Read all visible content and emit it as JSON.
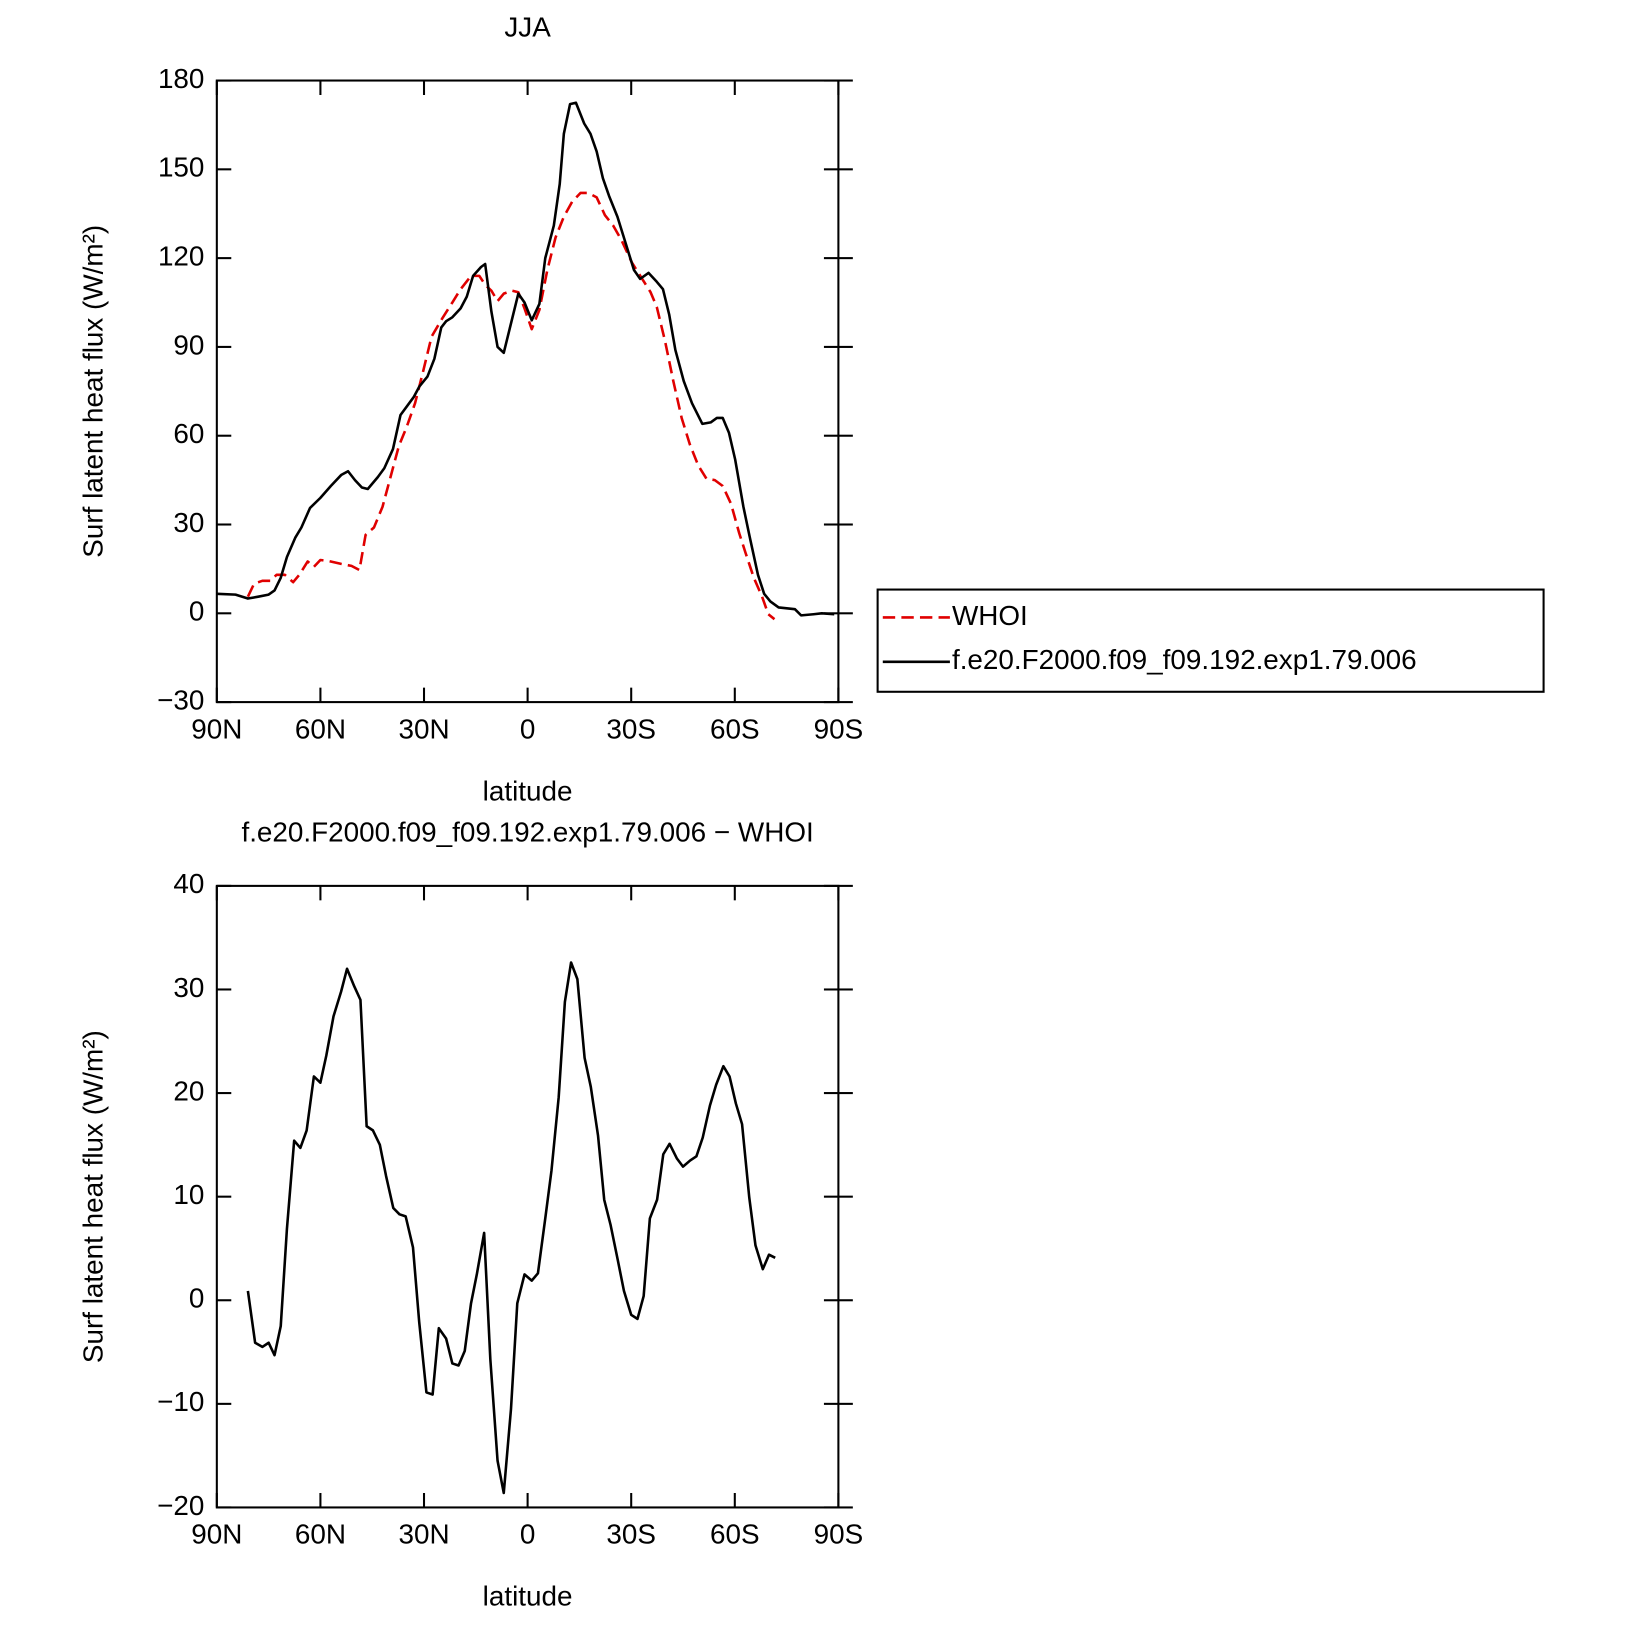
{
  "chart_data": [
    {
      "type": "line",
      "title": "JJA",
      "xlabel": "latitude",
      "ylabel": "Surf latent heat flux (W/m²)",
      "xlim": [
        90,
        -90
      ],
      "xticks": [
        {
          "value": 90,
          "label": "90N"
        },
        {
          "value": 60,
          "label": "60N"
        },
        {
          "value": 30,
          "label": "30N"
        },
        0,
        {
          "value": -30,
          "label": "30S"
        },
        {
          "value": -60,
          "label": "60S"
        },
        {
          "value": -90,
          "label": "90S"
        }
      ],
      "ylim": [
        -30,
        180
      ],
      "yticks": [
        {
          "value": -30,
          "label": "−30"
        },
        0,
        30,
        60,
        90,
        120,
        150,
        180
      ],
      "legend": "outside right",
      "series": [
        {
          "name": "WHOI",
          "color": "#e00000",
          "style": "dashed",
          "x": [
            81,
            79.2,
            76.8,
            74.5,
            72.7,
            70.3,
            67.9,
            66.1,
            63.7,
            61.9,
            60,
            57.7,
            54,
            51,
            48.7,
            46.9,
            44.5,
            42,
            39.7,
            37.3,
            35,
            32.6,
            30.2,
            27.8,
            24.8,
            21.8,
            19.4,
            16.4,
            14,
            12.3,
            10.5,
            8.7,
            6.9,
            4.5,
            2.7,
            0.9,
            -1.2,
            -3.4,
            -5.7,
            -8.1,
            -10.5,
            -12.9,
            -15.3,
            -17.6,
            -20,
            -22.4,
            -24.8,
            -27.2,
            -30.2,
            -33.2,
            -35.6,
            -37.4,
            -39.8,
            -42.2,
            -44.6,
            -47,
            -49.4,
            -51.8,
            -54.2,
            -56.5,
            -58.9,
            -61.3,
            -63.1,
            -65.5,
            -67.9,
            -69.7,
            -71.5
          ],
          "values": [
            5.6,
            10,
            11,
            11,
            13,
            13,
            10.5,
            13,
            17.5,
            15.7,
            18,
            17.7,
            16.7,
            16,
            14.6,
            26.5,
            29,
            36,
            46,
            56.5,
            63,
            71,
            82,
            93.5,
            99.5,
            105,
            109.5,
            114,
            114,
            111,
            109,
            105.5,
            108,
            109,
            108.5,
            103,
            96,
            102.5,
            116,
            127,
            134,
            139,
            142,
            142,
            140.5,
            134.5,
            131,
            126,
            118.5,
            113,
            108.5,
            103.5,
            92,
            78.5,
            66,
            57,
            50,
            45.5,
            45,
            43,
            37,
            27,
            20.5,
            12,
            5.6,
            -0.3,
            -2
          ]
        },
        {
          "name": "f.e20.F2000.f09_f09.192.exp1.79.006",
          "color": "#000000",
          "style": "solid",
          "x": [
            90,
            84.6,
            81,
            78,
            75,
            73.3,
            71.5,
            69.7,
            67.3,
            65.5,
            63,
            60,
            57,
            54,
            52,
            50,
            48,
            46.3,
            43.4,
            41.5,
            39,
            36.8,
            33,
            31.3,
            29,
            27,
            25,
            23.6,
            21.8,
            19.4,
            17.6,
            15.8,
            13.5,
            12.3,
            10.5,
            8.7,
            6.9,
            2.7,
            0.9,
            -1.2,
            -3.4,
            -5.1,
            -7.6,
            -9.3,
            -10.5,
            -12.3,
            -14,
            -16.4,
            -18.2,
            -20,
            -21.8,
            -23.6,
            -26,
            -28.4,
            -30.8,
            -32.6,
            -35,
            -37.4,
            -39.2,
            -41,
            -42.8,
            -45.2,
            -47.6,
            -50.6,
            -53,
            -54.8,
            -56.5,
            -58.3,
            -60.1,
            -62.5,
            -64.3,
            -66.7,
            -68.5,
            -70.3,
            -72.7,
            -77.4,
            -79.2,
            -82.8,
            -85.2,
            -88.8
          ],
          "values": [
            6.6,
            6.3,
            5,
            5.6,
            6.3,
            7.7,
            12,
            19,
            25.5,
            29,
            35.6,
            39,
            43,
            46.7,
            48,
            45,
            42.5,
            42,
            46,
            49,
            55.5,
            67,
            73,
            76.7,
            80,
            86,
            96.6,
            98.7,
            100,
            103,
            107,
            114,
            117,
            118,
            102,
            90,
            88,
            108,
            105,
            99,
            104.5,
            120,
            131,
            145,
            162,
            172,
            172.5,
            165.5,
            162,
            156,
            147,
            141,
            134,
            125,
            116,
            113,
            115,
            112,
            109.5,
            101,
            89,
            78.5,
            71,
            64,
            64.5,
            66,
            66,
            61,
            52,
            36,
            26,
            13,
            6.6,
            4,
            2,
            1.4,
            -0.7,
            -0.3,
            0,
            -0.3
          ]
        }
      ]
    },
    {
      "type": "line",
      "title": "f.e20.F2000.f09_f09.192.exp1.79.006 − WHOI",
      "xlabel": "latitude",
      "ylabel": "Surf latent heat flux (W/m²)",
      "xlim": [
        90,
        -90
      ],
      "xticks": [
        {
          "value": 90,
          "label": "90N"
        },
        {
          "value": 60,
          "label": "60N"
        },
        {
          "value": 30,
          "label": "30N"
        },
        0,
        {
          "value": -30,
          "label": "30S"
        },
        {
          "value": -60,
          "label": "60S"
        },
        {
          "value": -90,
          "label": "90S"
        }
      ],
      "ylim": [
        -20,
        40
      ],
      "yticks": [
        {
          "value": -20,
          "label": "−20"
        },
        {
          "value": -10,
          "label": "−10"
        },
        0,
        10,
        20,
        30,
        40
      ],
      "series": [
        {
          "color": "#000000",
          "style": "solid",
          "x": [
            81,
            78.9,
            76.8,
            75,
            73.3,
            71.5,
            69.7,
            67.6,
            65.8,
            64,
            61.9,
            60,
            58.3,
            56.2,
            54,
            52.3,
            50.2,
            48.4,
            46.6,
            44.8,
            42.8,
            41,
            38.9,
            37.1,
            35.3,
            33.2,
            31.4,
            29.3,
            27.5,
            25.7,
            23.6,
            21.8,
            20,
            18.2,
            16.4,
            14.7,
            12.6,
            10.8,
            8.7,
            6.9,
            4.8,
            3,
            0.9,
            -1.2,
            -3,
            -5.1,
            -6.9,
            -9,
            -10.8,
            -12.6,
            -14.4,
            -16.5,
            -18.3,
            -20.4,
            -22.2,
            -24,
            -26.1,
            -27.9,
            -30,
            -31.8,
            -33.6,
            -35.4,
            -37.5,
            -39.3,
            -41.1,
            -43.2,
            -45,
            -47.1,
            -48.9,
            -50.7,
            -52.8,
            -54.6,
            -56.7,
            -58.5,
            -60.3,
            -62.1,
            -64.2,
            -66,
            -68.1,
            -69.9,
            -71.7
          ],
          "values": [
            0.9,
            -4.1,
            -4.5,
            -4.1,
            -5.3,
            -2.5,
            6.9,
            15.4,
            14.7,
            16.4,
            21.6,
            21,
            23.6,
            27.4,
            29.8,
            32,
            30.3,
            29,
            16.8,
            16.4,
            15,
            12,
            8.9,
            8.3,
            8.1,
            5.1,
            -2.1,
            -8.9,
            -9.1,
            -2.7,
            -3.7,
            -6.1,
            -6.3,
            -4.9,
            -0.3,
            2.5,
            6.5,
            -5.7,
            -15.5,
            -18.6,
            -10.5,
            -0.3,
            2.5,
            1.9,
            2.6,
            7.9,
            12.5,
            19.6,
            28.8,
            32.6,
            31,
            23.4,
            20.6,
            15.9,
            9.7,
            7.3,
            3.9,
            0.9,
            -1.4,
            -1.8,
            0.4,
            7.9,
            9.7,
            14.1,
            15.1,
            13.7,
            12.9,
            13.5,
            13.9,
            15.7,
            18.8,
            20.8,
            22.6,
            21.6,
            19,
            17,
            9.9,
            5.3,
            3,
            4.4,
            4.1
          ]
        }
      ]
    }
  ]
}
